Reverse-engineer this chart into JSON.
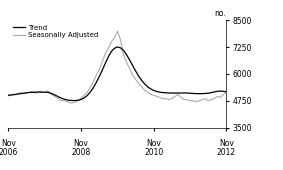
{
  "ylabel": "no.",
  "ylim": [
    3500,
    8500
  ],
  "yticks": [
    3500,
    4750,
    6000,
    7250,
    8500
  ],
  "trend_color": "#000000",
  "sa_color": "#aaaaaa",
  "background_color": "#ffffff",
  "legend_entries": [
    "Trend",
    "Seasonally Adjusted"
  ],
  "xtick_positions": [
    0,
    24,
    48,
    72
  ],
  "xtick_top_labels": [
    "Nov",
    "Nov",
    "Nov",
    "Nov"
  ],
  "xtick_bot_labels": [
    "2006",
    "2008",
    "2010",
    "2012"
  ],
  "n_months": 73,
  "trend_data": [
    5000,
    5020,
    5040,
    5060,
    5080,
    5100,
    5120,
    5140,
    5140,
    5150,
    5160,
    5150,
    5150,
    5140,
    5100,
    5040,
    4970,
    4900,
    4840,
    4800,
    4770,
    4760,
    4760,
    4770,
    4810,
    4880,
    4990,
    5150,
    5350,
    5600,
    5880,
    6180,
    6500,
    6800,
    7050,
    7200,
    7260,
    7220,
    7100,
    6900,
    6660,
    6400,
    6140,
    5900,
    5700,
    5530,
    5400,
    5300,
    5230,
    5180,
    5150,
    5130,
    5120,
    5110,
    5110,
    5110,
    5110,
    5110,
    5110,
    5110,
    5100,
    5090,
    5080,
    5080,
    5080,
    5090,
    5100,
    5130,
    5160,
    5190,
    5200,
    5190,
    5160
  ],
  "sa_data": [
    4980,
    5050,
    5020,
    5080,
    5130,
    5070,
    5110,
    5150,
    5180,
    5100,
    5150,
    5170,
    5130,
    5220,
    5060,
    4980,
    4890,
    4780,
    4750,
    4730,
    4670,
    4640,
    4700,
    4760,
    4880,
    4990,
    5150,
    5350,
    5620,
    5950,
    6200,
    6580,
    6950,
    7200,
    7500,
    7700,
    8000,
    7600,
    6900,
    6550,
    6250,
    5950,
    5750,
    5550,
    5400,
    5250,
    5150,
    5050,
    5000,
    4950,
    4900,
    4850,
    4850,
    4800,
    4850,
    4950,
    5050,
    4900,
    4800,
    4800,
    4750,
    4750,
    4700,
    4750,
    4800,
    4850,
    4750,
    4800,
    4850,
    4950,
    4900,
    5050,
    5150
  ]
}
